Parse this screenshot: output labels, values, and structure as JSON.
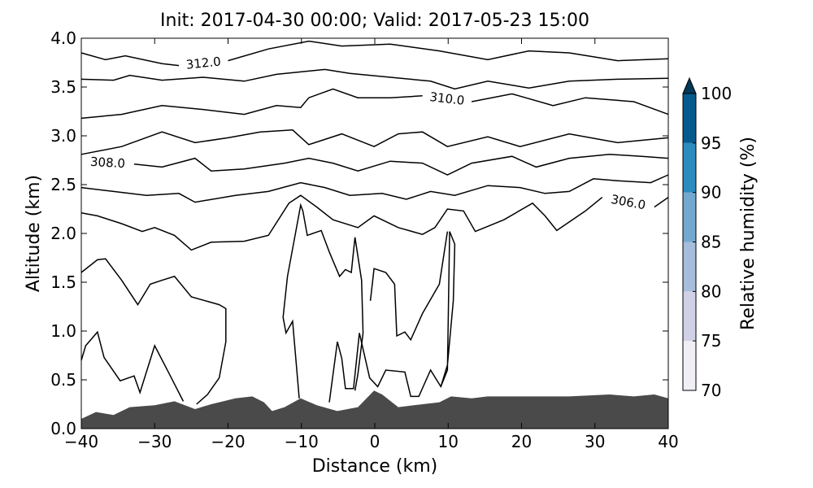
{
  "chart_data": {
    "type": "contour",
    "title": "Init: 2017-04-30 00:00; Valid: 2017-05-23 15:00",
    "x_label": "Distance (km)",
    "y_label": "Altitude (km)",
    "xlim": [
      -40,
      40
    ],
    "ylim": [
      0,
      4
    ],
    "xticks": [
      {
        "value": -40,
        "label": "−40"
      },
      {
        "value": -30,
        "label": "−30"
      },
      {
        "value": -20,
        "label": "−20"
      },
      {
        "value": -10,
        "label": "−10"
      },
      0,
      10,
      20,
      30,
      40
    ],
    "yticks": [
      {
        "value": 0,
        "label": "0.0"
      },
      {
        "value": 0.5,
        "label": "0.5"
      },
      {
        "value": 1,
        "label": "1.0"
      },
      {
        "value": 1.5,
        "label": "1.5"
      },
      {
        "value": 2,
        "label": "2.0"
      },
      {
        "value": 2.5,
        "label": "2.5"
      },
      {
        "value": 3,
        "label": "3.0"
      },
      {
        "value": 3.5,
        "label": "3.5"
      },
      {
        "value": 4,
        "label": "4.0"
      }
    ],
    "terrain": {
      "color": "#4a4a4a",
      "x": [
        -40,
        -38,
        -35.6,
        -33.4,
        -30,
        -27.3,
        -24.5,
        -22.3,
        -19,
        -16.7,
        -15.1,
        -14,
        -12.3,
        -10.1,
        -7.9,
        -5.1,
        -2.3,
        -0.1,
        1,
        3.2,
        6.5,
        8.8,
        10.4,
        13.2,
        15.4,
        21,
        26.5,
        32,
        35.3,
        38.1,
        40
      ],
      "y": [
        0.1,
        0.17,
        0.14,
        0.22,
        0.24,
        0.28,
        0.2,
        0.25,
        0.31,
        0.33,
        0.27,
        0.18,
        0.22,
        0.31,
        0.24,
        0.18,
        0.22,
        0.39,
        0.35,
        0.22,
        0.25,
        0.27,
        0.33,
        0.31,
        0.33,
        0.33,
        0.33,
        0.35,
        0.33,
        0.35,
        0.31
      ]
    },
    "contours": [
      {
        "label": "312.0",
        "x": [
          -40,
          -36.7,
          -34,
          -29,
          -26.7,
          null,
          -20,
          -14.5,
          -9,
          -4.5,
          2.1,
          8.8,
          15.4,
          21,
          26.5,
          33.1,
          40
        ],
        "y": [
          3.85,
          3.78,
          3.82,
          3.74,
          3.72,
          null,
          3.77,
          3.89,
          3.97,
          3.92,
          3.94,
          3.87,
          3.78,
          3.87,
          3.85,
          3.77,
          3.79
        ]
      },
      {
        "x": [
          -40,
          -35.6,
          -33.4,
          -29,
          -23.4,
          -17.8,
          -13.4,
          -6.8,
          -3.4,
          2.1,
          7.6,
          10.9,
          15.4,
          21,
          26.5,
          33.1,
          40
        ],
        "y": [
          3.58,
          3.57,
          3.62,
          3.57,
          3.6,
          3.56,
          3.63,
          3.68,
          3.64,
          3.6,
          3.56,
          3.48,
          3.56,
          3.49,
          3.56,
          3.58,
          3.59
        ]
      },
      {
        "label": "310.0",
        "x": [
          -40,
          -34.5,
          -29,
          -23.4,
          -17.8,
          -13.4,
          -10.1,
          -9,
          -5.7,
          -2.3,
          2.1,
          6.5,
          null,
          13.2,
          18.7,
          24.3,
          28.7,
          35.3,
          40
        ],
        "y": [
          3.18,
          3.22,
          3.31,
          3.27,
          3.22,
          3.31,
          3.29,
          3.39,
          3.48,
          3.39,
          3.39,
          3.41,
          null,
          3.35,
          3.43,
          3.31,
          3.39,
          3.35,
          3.22
        ]
      },
      {
        "x": [
          -40,
          -34.5,
          -29,
          -24.5,
          -20,
          -15.6,
          -11.2,
          -9,
          -4.5,
          -0.1,
          3.2,
          6.5,
          9.9,
          15.4,
          19.8,
          26.5,
          33.1,
          40
        ],
        "y": [
          2.81,
          2.89,
          3.04,
          2.93,
          2.98,
          3.04,
          3.06,
          2.91,
          3.02,
          2.89,
          3.02,
          3.04,
          2.89,
          2.99,
          2.89,
          3.02,
          2.93,
          2.98
        ]
      },
      {
        "label": "308.0",
        "x": [
          -40,
          null,
          -32.8,
          -29,
          -24.5,
          -22.3,
          -17.8,
          -12.3,
          -9,
          -5.7,
          -2.3,
          2.1,
          6.5,
          9.9,
          13.2,
          18.7,
          22,
          26.5,
          32,
          36.4,
          40
        ],
        "y": [
          2.74,
          null,
          2.71,
          2.68,
          2.77,
          2.64,
          2.66,
          2.72,
          2.77,
          2.72,
          2.64,
          2.74,
          2.72,
          2.6,
          2.72,
          2.79,
          2.68,
          2.77,
          2.81,
          2.79,
          2.77
        ]
      },
      {
        "x": [
          -40,
          -35.6,
          -31.1,
          -26.7,
          -24.5,
          -19,
          -14.5,
          -10.1,
          -6.8,
          -3.4,
          1,
          4.3,
          7.6,
          10.9,
          15.4,
          19.8,
          23.2,
          26.5,
          29.8,
          33.1,
          37.6,
          40
        ],
        "y": [
          2.47,
          2.43,
          2.39,
          2.41,
          2.32,
          2.39,
          2.43,
          2.52,
          2.47,
          2.39,
          2.41,
          2.35,
          2.43,
          2.39,
          2.49,
          2.47,
          2.41,
          2.43,
          2.56,
          2.54,
          2.52,
          2.6
        ]
      },
      {
        "label": "306.0",
        "x": [
          -40,
          -37.8,
          -34.5,
          -31.7,
          -30,
          -27.3,
          -25,
          -22.3,
          -17.8,
          -14.5,
          -11.7,
          -10.1,
          -7.9,
          -5.7,
          -2.3,
          -0.1,
          3.2,
          6.5,
          8.2,
          9.9,
          12.1,
          13.7,
          17.6,
          21.5,
          23.2,
          24.8,
          28.7,
          31,
          null,
          38.1,
          40
        ],
        "y": [
          2.21,
          2.18,
          2.1,
          2.02,
          2.06,
          1.98,
          1.83,
          1.91,
          1.92,
          1.98,
          2.31,
          2.39,
          2.27,
          2.14,
          2.06,
          2.18,
          2.06,
          1.99,
          2.06,
          2.25,
          2.23,
          2.02,
          2.14,
          2.31,
          2.18,
          2.03,
          2.23,
          2.37,
          null,
          2.27,
          2.37
        ]
      },
      {
        "x": [
          -40,
          -37.8,
          -36.7,
          -34.5,
          -32.3,
          -30.6,
          -29,
          -27.3,
          -25,
          -21.2,
          -20.3,
          -20.3,
          -21.2,
          -22.8,
          -24.3
        ],
        "y": [
          1.6,
          1.73,
          1.74,
          1.52,
          1.27,
          1.48,
          1.52,
          1.56,
          1.35,
          1.27,
          1.23,
          0.89,
          0.52,
          0.35,
          0.25
        ]
      },
      {
        "x": [
          -40,
          -39.4,
          -37.8,
          -36.9,
          -34.7,
          -32.8,
          -32,
          -30,
          -28,
          -26.1
        ],
        "y": [
          0.7,
          0.85,
          0.99,
          0.73,
          0.49,
          0.54,
          0.37,
          0.85,
          0.56,
          0.28
        ]
      },
      {
        "x": [
          -10.3,
          -11.2,
          -12.1,
          -12.5,
          -11.9,
          -10.1,
          -9.8,
          -9.2,
          -7.3,
          -6.2,
          -4.8,
          -4,
          -3.2,
          -2.7,
          -1.8,
          -1.6,
          -2.3,
          -2.7
        ],
        "y": [
          0.31,
          1.1,
          0.98,
          1.14,
          1.56,
          2.29,
          2.23,
          1.98,
          2.03,
          1.81,
          1.56,
          1.63,
          1.6,
          1.96,
          1.52,
          0.98,
          0.56,
          0.39
        ]
      },
      {
        "x": [
          -6.2,
          -5.1,
          -4.5,
          -4,
          -2.9,
          -2.1,
          -0.7,
          0.4,
          1.5,
          4.1,
          4.9,
          6,
          7.6,
          9,
          9.9,
          10.2,
          10.9,
          10.7,
          9.9,
          9
        ],
        "y": [
          0.27,
          0.89,
          0.72,
          0.41,
          0.41,
          0.98,
          0.52,
          0.43,
          0.6,
          0.58,
          0.33,
          0.33,
          0.6,
          0.43,
          0.6,
          2.02,
          1.89,
          1.31,
          0.65,
          0.43
        ]
      },
      {
        "x": [
          -0.6,
          -0.1,
          1.5,
          2.7,
          3,
          4.1,
          4.9,
          6.5,
          8.8,
          9.9
        ],
        "y": [
          1.31,
          1.64,
          1.6,
          1.48,
          0.95,
          0.99,
          0.91,
          1.18,
          1.48,
          2.02
        ]
      }
    ],
    "colorbar": {
      "label": "Relative humidity (%)",
      "levels": [
        70,
        75,
        80,
        85,
        90,
        95,
        100
      ],
      "ticks": [
        70,
        75,
        80,
        85,
        90,
        95,
        100
      ],
      "colors": [
        "#f1eef6",
        "#d0d1e6",
        "#a6bddb",
        "#74a9cf",
        "#2b8cbe",
        "#045a8d"
      ],
      "extend_color": "#023858"
    }
  }
}
